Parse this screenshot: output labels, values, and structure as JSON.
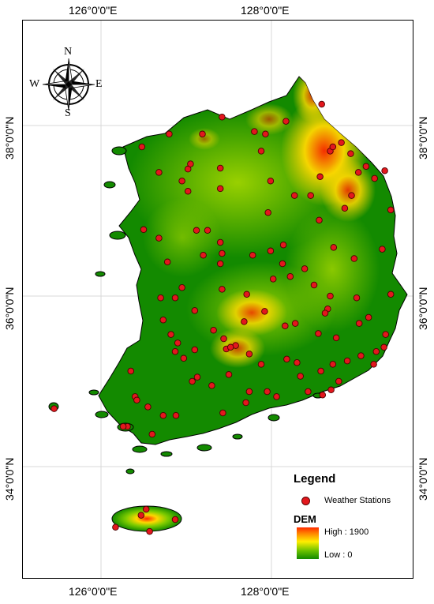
{
  "axes": {
    "lon_labels": [
      "126°0'0\"E",
      "128°0'0\"E"
    ],
    "lat_labels": [
      "38°0'0\"N",
      "36°0'0\"N",
      "34°0'0\"N"
    ]
  },
  "compass": {
    "n": "N",
    "s": "S",
    "e": "E",
    "w": "W"
  },
  "legend": {
    "title": "Legend",
    "station_label": "Weather Stations",
    "dem_title": "DEM",
    "high_label": "High : 1900",
    "low_label": "Low : 0"
  },
  "colors": {
    "lowland": "#138a00",
    "midland": "#7fcc00",
    "highland": "#ffd800",
    "peak": "#ff2a00",
    "station": "#e3171d",
    "graticule": "#d9d9d9"
  },
  "stations": [
    [
      126.48,
      37.75
    ],
    [
      126.8,
      37.9
    ],
    [
      127.19,
      37.9
    ],
    [
      127.42,
      38.1
    ],
    [
      127.8,
      37.93
    ],
    [
      127.93,
      37.9
    ],
    [
      128.17,
      38.05
    ],
    [
      128.59,
      38.25
    ],
    [
      126.68,
      37.45
    ],
    [
      126.95,
      37.35
    ],
    [
      127.02,
      37.49
    ],
    [
      127.05,
      37.55
    ],
    [
      127.02,
      37.23
    ],
    [
      127.4,
      37.26
    ],
    [
      127.4,
      37.5
    ],
    [
      127.88,
      37.7
    ],
    [
      127.99,
      37.35
    ],
    [
      128.27,
      37.18
    ],
    [
      128.46,
      37.18
    ],
    [
      128.57,
      37.4
    ],
    [
      128.69,
      37.7
    ],
    [
      128.72,
      37.75
    ],
    [
      128.82,
      37.8
    ],
    [
      128.93,
      37.67
    ],
    [
      129.11,
      37.52
    ],
    [
      129.02,
      37.45
    ],
    [
      128.94,
      37.18
    ],
    [
      128.86,
      37.03
    ],
    [
      129.4,
      37.01
    ],
    [
      129.33,
      37.47
    ],
    [
      129.21,
      37.38
    ],
    [
      126.5,
      36.78
    ],
    [
      126.68,
      36.68
    ],
    [
      126.78,
      36.4
    ],
    [
      127.12,
      36.77
    ],
    [
      127.25,
      36.77
    ],
    [
      127.4,
      36.63
    ],
    [
      127.2,
      36.48
    ],
    [
      127.4,
      36.38
    ],
    [
      127.42,
      36.5
    ],
    [
      127.78,
      36.48
    ],
    [
      127.96,
      36.98
    ],
    [
      127.99,
      36.53
    ],
    [
      128.14,
      36.6
    ],
    [
      128.13,
      36.38
    ],
    [
      128.22,
      36.23
    ],
    [
      128.5,
      36.13
    ],
    [
      128.56,
      36.89
    ],
    [
      128.73,
      36.57
    ],
    [
      128.97,
      36.44
    ],
    [
      129.3,
      36.55
    ],
    [
      129.4,
      36.02
    ],
    [
      126.95,
      36.1
    ],
    [
      126.87,
      35.98
    ],
    [
      127.1,
      35.83
    ],
    [
      127.42,
      36.08
    ],
    [
      127.71,
      36.02
    ],
    [
      128.02,
      36.2
    ],
    [
      128.39,
      36.32
    ],
    [
      128.69,
      36.0
    ],
    [
      129.0,
      35.98
    ],
    [
      128.66,
      35.85
    ],
    [
      128.63,
      35.8
    ],
    [
      127.32,
      35.6
    ],
    [
      127.44,
      35.5
    ],
    [
      127.58,
      35.42
    ],
    [
      127.68,
      35.7
    ],
    [
      127.92,
      35.82
    ],
    [
      128.16,
      35.65
    ],
    [
      128.28,
      35.68
    ],
    [
      128.55,
      35.56
    ],
    [
      128.76,
      35.51
    ],
    [
      129.03,
      35.68
    ],
    [
      129.14,
      35.75
    ],
    [
      129.34,
      35.55
    ],
    [
      126.7,
      35.98
    ],
    [
      126.73,
      35.72
    ],
    [
      126.82,
      35.55
    ],
    [
      126.87,
      35.35
    ],
    [
      126.9,
      35.45
    ],
    [
      127.1,
      35.37
    ],
    [
      127.13,
      35.05
    ],
    [
      127.47,
      35.38
    ],
    [
      127.52,
      35.4
    ],
    [
      127.74,
      35.32
    ],
    [
      127.88,
      35.2
    ],
    [
      128.18,
      35.26
    ],
    [
      128.3,
      35.22
    ],
    [
      128.34,
      35.06
    ],
    [
      128.58,
      35.12
    ],
    [
      128.72,
      35.2
    ],
    [
      128.89,
      35.24
    ],
    [
      129.05,
      35.3
    ],
    [
      129.23,
      35.35
    ],
    [
      129.2,
      35.2
    ],
    [
      129.32,
      35.4
    ],
    [
      126.35,
      35.12
    ],
    [
      126.4,
      34.82
    ],
    [
      126.55,
      34.7
    ],
    [
      126.88,
      34.6
    ],
    [
      126.97,
      35.27
    ],
    [
      127.07,
      35.0
    ],
    [
      127.3,
      34.95
    ],
    [
      127.43,
      34.63
    ],
    [
      127.5,
      35.08
    ],
    [
      127.74,
      34.88
    ],
    [
      127.7,
      34.75
    ],
    [
      127.95,
      34.88
    ],
    [
      128.06,
      34.82
    ],
    [
      128.43,
      34.88
    ],
    [
      128.6,
      34.84
    ],
    [
      128.7,
      34.9
    ],
    [
      128.79,
      35.0
    ],
    [
      126.73,
      34.6
    ],
    [
      126.6,
      34.38
    ],
    [
      126.31,
      34.47
    ],
    [
      126.26,
      34.47
    ],
    [
      126.42,
      34.78
    ],
    [
      125.45,
      34.68
    ],
    [
      126.53,
      33.5
    ],
    [
      126.87,
      33.38
    ],
    [
      126.17,
      33.29
    ],
    [
      126.57,
      33.24
    ],
    [
      126.47,
      33.43
    ]
  ]
}
